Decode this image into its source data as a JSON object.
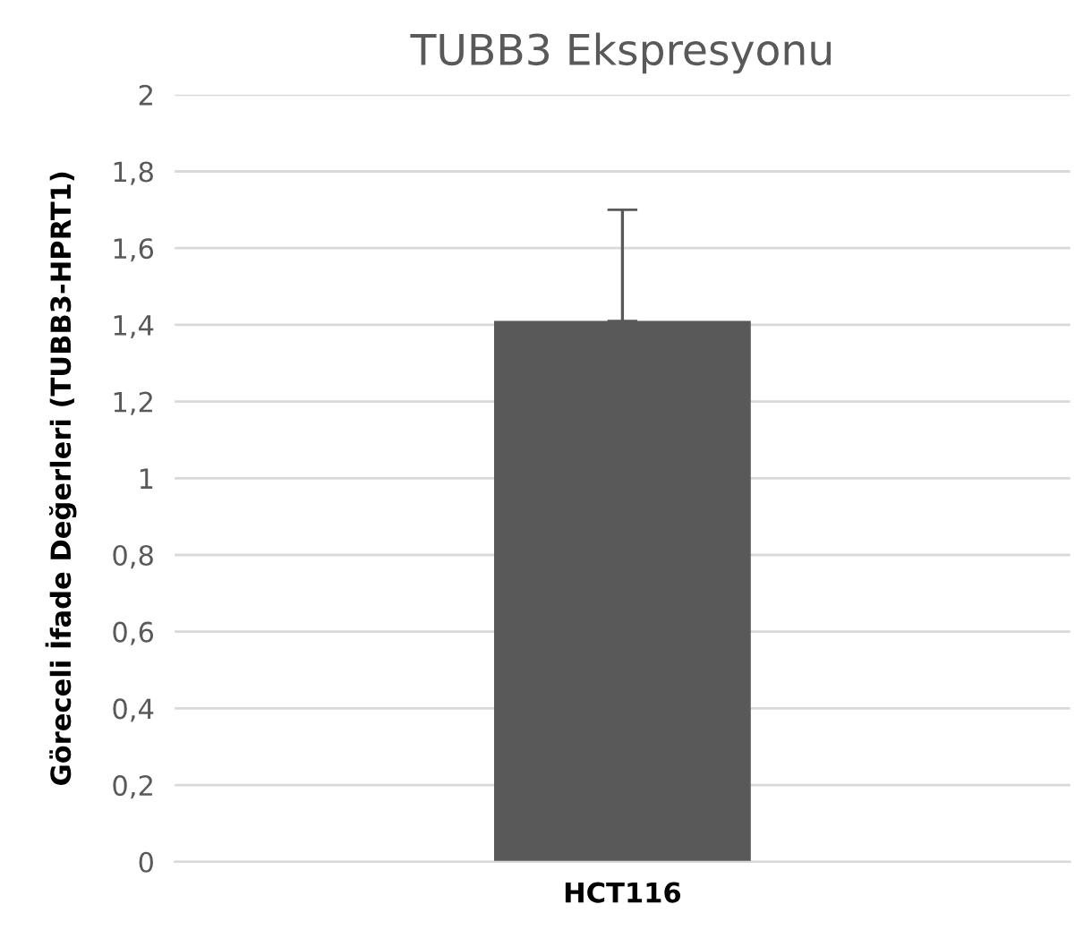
{
  "chart_data": {
    "type": "bar",
    "title": "TUBB3 Ekspresyonu",
    "ylabel": "Göreceli İfade Değerleri (TUBB3-HPRT1)",
    "categories": [
      "HCT116"
    ],
    "values": [
      1.41
    ],
    "errors": [
      [
        1.41,
        1.7
      ]
    ],
    "color": "#595959",
    "ylim": [
      0,
      2
    ],
    "yticks": [
      0,
      {
        "value": 0.2,
        "label": "0,2"
      },
      {
        "value": 0.4,
        "label": "0,4"
      },
      {
        "value": 0.6,
        "label": "0,6"
      },
      {
        "value": 0.8,
        "label": "0,8"
      },
      1,
      {
        "value": 1.2,
        "label": "1,2"
      },
      {
        "value": 1.4,
        "label": "1,4"
      },
      {
        "value": 1.6,
        "label": "1,6"
      },
      {
        "value": 1.8,
        "label": "1,8"
      },
      2
    ],
    "grid": "y"
  }
}
